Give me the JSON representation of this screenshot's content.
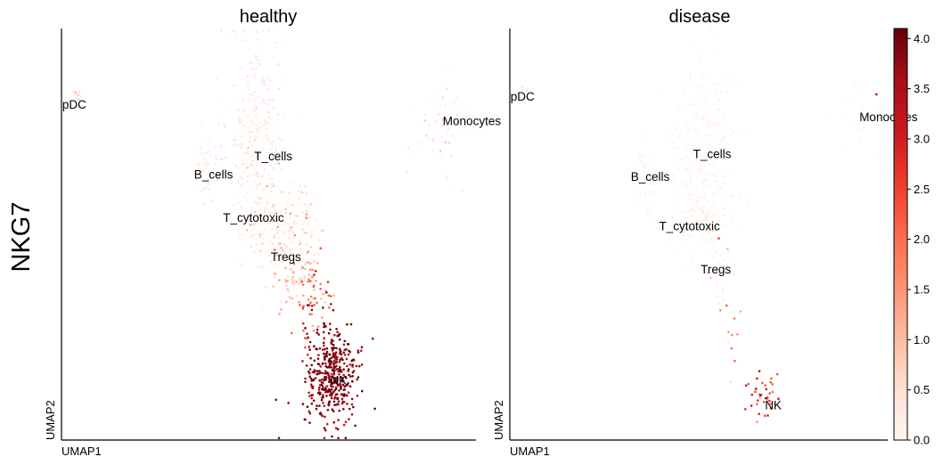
{
  "chart_data": {
    "type": "scatter",
    "embedding": "UMAP",
    "row_label": "NKG7",
    "xlabel": "UMAP1",
    "ylabel": "UMAP2",
    "value_range": [
      0.0,
      4.1
    ],
    "colormap": "Reds",
    "colors": {
      "low": "#fff5f0",
      "mid": "#fb6a4a",
      "high": "#67000d"
    },
    "grid": false,
    "legend": "none",
    "colorbar": {
      "placement": "right",
      "ticks": [
        0.0,
        0.5,
        1.0,
        1.5,
        2.0,
        2.5,
        3.0,
        3.5,
        4.0
      ],
      "tick_labels": [
        "0.0",
        "0.5",
        "1.0",
        "1.5",
        "2.0",
        "2.5",
        "3.0",
        "3.5",
        "4.0"
      ]
    },
    "panels": [
      {
        "title": "healthy",
        "clusters": [
          {
            "label": "pDC",
            "label_pos": [
              0.2,
              80.5
            ],
            "center": [
              4.0,
              83.5
            ],
            "spread": [
              0.8,
              1.0
            ],
            "n": 10,
            "expr_mean": 0.6,
            "expr_sd": 0.25
          },
          {
            "label": "T_cells",
            "label_pos": [
              46.5,
              68.0
            ],
            "center": [
              47.0,
              73.0
            ],
            "spread": [
              3.5,
              14.0
            ],
            "n": 360,
            "expr_mean": 0.15,
            "expr_sd": 0.2
          },
          {
            "label": "B_cells",
            "label_pos": [
              32.0,
              63.5
            ],
            "center": [
              35.5,
              65.5
            ],
            "spread": [
              1.3,
              4.0
            ],
            "n": 60,
            "expr_mean": 0.1,
            "expr_sd": 0.1
          },
          {
            "label": "T_cytotoxic",
            "label_pos": [
              39.0,
              53.0
            ],
            "center": [
              53.0,
              53.0
            ],
            "spread": [
              4.0,
              5.5
            ],
            "n": 170,
            "expr_mean": 0.35,
            "expr_sd": 0.4
          },
          {
            "label": "Tregs",
            "label_pos": [
              50.5,
              43.5
            ],
            "center": [
              57.0,
              41.0
            ],
            "spread": [
              3.0,
              5.5
            ],
            "n": 110,
            "expr_mean": 0.5,
            "expr_sd": 0.6
          },
          {
            "label": "Monocytes",
            "label_pos": [
              92.0,
              76.5
            ],
            "center": [
              91.5,
              76.0
            ],
            "spread": [
              3.0,
              7.0
            ],
            "n": 55,
            "expr_mean": 0.3,
            "expr_sd": 0.25
          },
          {
            "label": "",
            "label_pos": null,
            "center": [
              60.5,
              34.5
            ],
            "spread": [
              2.0,
              5.0
            ],
            "n": 55,
            "expr_mean": 2.2,
            "expr_sd": 0.7
          },
          {
            "label": "NK",
            "label_pos": [
              64.8,
              13.5
            ],
            "center": [
              65.0,
              15.5
            ],
            "spread": [
              3.2,
              6.5
            ],
            "n": 420,
            "expr_mean": 3.85,
            "expr_sd": 0.35
          }
        ]
      },
      {
        "title": "disease",
        "clusters": [
          {
            "label": "pDC",
            "label_pos": [
              0.2,
              82.5
            ],
            "center": [
              4.0,
              84.5
            ],
            "spread": [
              0.7,
              0.8
            ],
            "n": 6,
            "expr_mean": 0.3,
            "expr_sd": 0.2
          },
          {
            "label": "T_cells",
            "label_pos": [
              48.5,
              68.5
            ],
            "center": [
              51.0,
              70.5
            ],
            "spread": [
              4.5,
              11.0
            ],
            "n": 230,
            "expr_mean": 0.04,
            "expr_sd": 0.05
          },
          {
            "label": "B_cells",
            "label_pos": [
              32.0,
              63.0
            ],
            "center": [
              36.0,
              64.0
            ],
            "spread": [
              1.5,
              5.0
            ],
            "n": 55,
            "expr_mean": 0.03,
            "expr_sd": 0.04
          },
          {
            "label": "T_cytotoxic",
            "label_pos": [
              39.5,
              51.0
            ],
            "center": [
              50.5,
              54.0
            ],
            "spread": [
              3.5,
              6.0
            ],
            "n": 120,
            "expr_mean": 0.05,
            "expr_sd": 0.1
          },
          {
            "label": "Tregs",
            "label_pos": [
              50.5,
              40.5
            ],
            "center": [
              55.5,
              40.0
            ],
            "spread": [
              2.0,
              4.5
            ],
            "n": 25,
            "expr_mean": 0.3,
            "expr_sd": 0.5
          },
          {
            "label": "Monocytes",
            "label_pos": [
              92.5,
              77.5
            ],
            "center": [
              94.5,
              78.0
            ],
            "spread": [
              3.0,
              5.0
            ],
            "n": 25,
            "expr_mean": 0.05,
            "expr_sd": 0.05
          },
          {
            "label": "",
            "label_pos": null,
            "center": [
              59.0,
              26.0
            ],
            "spread": [
              0.9,
              5.5
            ],
            "n": 10,
            "expr_mean": 1.6,
            "expr_sd": 0.6
          },
          {
            "label": "NK",
            "label_pos": [
              67.5,
              7.5
            ],
            "center": [
              67.0,
              11.0
            ],
            "spread": [
              2.0,
              3.0
            ],
            "n": 40,
            "expr_mean": 2.6,
            "expr_sd": 0.6
          }
        ],
        "highlighted_points": [
          {
            "x": 97.0,
            "y": 84.0,
            "value": 3.7
          },
          {
            "x": 55.3,
            "y": 49.0,
            "value": 2.5
          }
        ]
      }
    ]
  }
}
